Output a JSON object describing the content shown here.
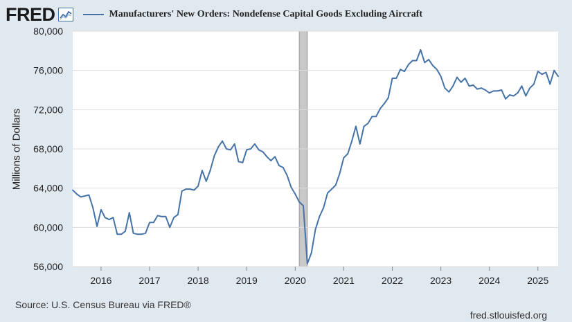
{
  "header": {
    "logo": "FRED",
    "series_title": "Manufacturers' New Orders: Nondefense Capital Goods Excluding Aircraft"
  },
  "footer": {
    "source": "Source: U.S. Census Bureau via FRED®",
    "site": "fred.stlouisfed.org"
  },
  "colors": {
    "background": "#e1e9f0",
    "plot_background": "#ffffff",
    "series": "#4572a7",
    "gridline": "#dddddd",
    "recession_shade": "#c8c8c8"
  },
  "icons": [
    "fred-graph-icon"
  ],
  "chart_data": {
    "type": "line",
    "title": "",
    "xlabel": "",
    "ylabel": "Millions of Dollars",
    "x_range": [
      "2015-06",
      "2025-06"
    ],
    "ylim": [
      56000,
      80000
    ],
    "y_ticks": [
      {
        "value": 56000,
        "label": "56,000"
      },
      {
        "value": 60000,
        "label": "60,000"
      },
      {
        "value": 64000,
        "label": "64,000"
      },
      {
        "value": 68000,
        "label": "68,000"
      },
      {
        "value": 72000,
        "label": "72,000"
      },
      {
        "value": 76000,
        "label": "76,000"
      },
      {
        "value": 80000,
        "label": "80,000"
      }
    ],
    "x_ticks": [
      {
        "value": "2016-01",
        "label": "2016"
      },
      {
        "value": "2017-01",
        "label": "2017"
      },
      {
        "value": "2018-01",
        "label": "2018"
      },
      {
        "value": "2019-01",
        "label": "2019"
      },
      {
        "value": "2020-01",
        "label": "2020"
      },
      {
        "value": "2021-01",
        "label": "2021"
      },
      {
        "value": "2022-01",
        "label": "2022"
      },
      {
        "value": "2023-01",
        "label": "2023"
      },
      {
        "value": "2024-01",
        "label": "2024"
      },
      {
        "value": "2025-01",
        "label": "2025"
      }
    ],
    "grid": "horizontal",
    "recession": {
      "start": "2020-02",
      "end": "2020-04"
    },
    "series": [
      {
        "name": "Manufacturers' New Orders: Nondefense Capital Goods Excluding Aircraft",
        "x": [
          "2015-06",
          "2015-07",
          "2015-08",
          "2015-09",
          "2015-10",
          "2015-11",
          "2015-12",
          "2016-01",
          "2016-02",
          "2016-03",
          "2016-04",
          "2016-05",
          "2016-06",
          "2016-07",
          "2016-08",
          "2016-09",
          "2016-10",
          "2016-11",
          "2016-12",
          "2017-01",
          "2017-02",
          "2017-03",
          "2017-04",
          "2017-05",
          "2017-06",
          "2017-07",
          "2017-08",
          "2017-09",
          "2017-10",
          "2017-11",
          "2017-12",
          "2018-01",
          "2018-02",
          "2018-03",
          "2018-04",
          "2018-05",
          "2018-06",
          "2018-07",
          "2018-08",
          "2018-09",
          "2018-10",
          "2018-11",
          "2018-12",
          "2019-01",
          "2019-02",
          "2019-03",
          "2019-04",
          "2019-05",
          "2019-06",
          "2019-07",
          "2019-08",
          "2019-09",
          "2019-10",
          "2019-11",
          "2019-12",
          "2020-01",
          "2020-02",
          "2020-03",
          "2020-04",
          "2020-05",
          "2020-06",
          "2020-07",
          "2020-08",
          "2020-09",
          "2020-10",
          "2020-11",
          "2020-12",
          "2021-01",
          "2021-02",
          "2021-03",
          "2021-04",
          "2021-05",
          "2021-06",
          "2021-07",
          "2021-08",
          "2021-09",
          "2021-10",
          "2021-11",
          "2021-12",
          "2022-01",
          "2022-02",
          "2022-03",
          "2022-04",
          "2022-05",
          "2022-06",
          "2022-07",
          "2022-08",
          "2022-09",
          "2022-10",
          "2022-11",
          "2022-12",
          "2023-01",
          "2023-02",
          "2023-03",
          "2023-04",
          "2023-05",
          "2023-06",
          "2023-07",
          "2023-08",
          "2023-09",
          "2023-10",
          "2023-11",
          "2023-12",
          "2024-01",
          "2024-02",
          "2024-03",
          "2024-04",
          "2024-05",
          "2024-06",
          "2024-07",
          "2024-08",
          "2024-09",
          "2024-10",
          "2024-11",
          "2024-12",
          "2025-01",
          "2025-02",
          "2025-03",
          "2025-04",
          "2025-05",
          "2025-06"
        ],
        "values": [
          63800,
          63400,
          63100,
          63200,
          63300,
          62000,
          60100,
          61800,
          61000,
          60800,
          61000,
          59300,
          59300,
          59600,
          61500,
          59400,
          59300,
          59300,
          59400,
          60500,
          60500,
          61200,
          61100,
          61100,
          60000,
          61000,
          61300,
          63700,
          63900,
          63900,
          63800,
          64200,
          65800,
          64700,
          65800,
          67300,
          68200,
          68800,
          68000,
          67900,
          68500,
          66700,
          66600,
          67900,
          68000,
          68500,
          67900,
          67700,
          67200,
          66800,
          67200,
          66300,
          66100,
          65300,
          64100,
          63400,
          62600,
          62200,
          56300,
          57400,
          59800,
          61100,
          62000,
          63500,
          63900,
          64300,
          65500,
          67100,
          67500,
          68800,
          70300,
          68500,
          70300,
          70600,
          71300,
          71300,
          72100,
          72600,
          73200,
          75200,
          75200,
          76100,
          75900,
          76600,
          77000,
          77000,
          78100,
          76800,
          77100,
          76500,
          76100,
          75400,
          74200,
          73800,
          74400,
          75300,
          74800,
          75200,
          74400,
          74500,
          74100,
          74200,
          74000,
          73700,
          73900,
          73900,
          74000,
          73100,
          73500,
          73400,
          73700,
          74400,
          73400,
          74200,
          74600,
          75900,
          75600,
          75800,
          74600,
          76000,
          75400
        ]
      }
    ]
  }
}
